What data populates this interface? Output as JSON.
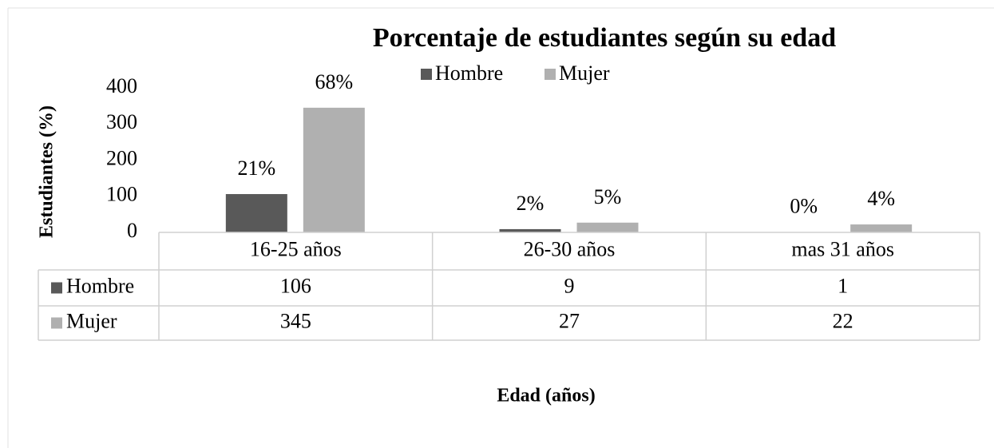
{
  "chart_data": {
    "type": "bar",
    "title": "Porcentaje de estudiantes según su edad",
    "y_label": "Estudiantes (%)",
    "x_label": "Edad (años)",
    "categories": [
      "16-25 años",
      "26-30 años",
      "mas 31 años"
    ],
    "series": [
      {
        "name": "Hombre",
        "color": "#595959",
        "values": [
          106,
          9,
          1
        ],
        "value_labels": [
          "21%",
          "2%",
          "0%"
        ]
      },
      {
        "name": "Mujer",
        "color": "#b0b0b0",
        "values": [
          345,
          27,
          22
        ],
        "value_labels": [
          "68%",
          "5%",
          "4%"
        ]
      }
    ],
    "ylim": [
      0,
      400
    ],
    "yticks": [
      0,
      100,
      200,
      300,
      400
    ],
    "grid": false,
    "legend": "top",
    "data_table": true
  }
}
